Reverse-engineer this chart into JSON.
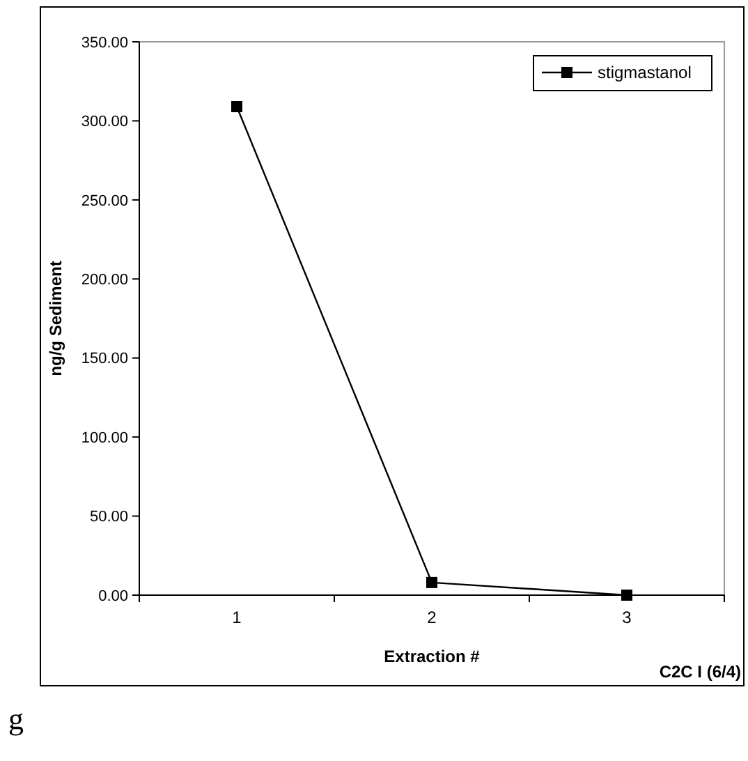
{
  "chart_data": {
    "type": "line",
    "xlabel": "Extraction #",
    "ylabel": "ng/g Sediment",
    "categories": [
      "1",
      "2",
      "3"
    ],
    "series": [
      {
        "name": "stigmastanol",
        "color": "#000000",
        "values": [
          309,
          8,
          0
        ]
      }
    ],
    "ylim": [
      0,
      350
    ],
    "yticks": [
      {
        "value": 0,
        "label": "0.00"
      },
      {
        "value": 50,
        "label": "50.00"
      },
      {
        "value": 100,
        "label": "100.00"
      },
      {
        "value": 150,
        "label": "150.00"
      },
      {
        "value": 200,
        "label": "200.00"
      },
      {
        "value": 250,
        "label": "250.00"
      },
      {
        "value": 300,
        "label": "300.00"
      },
      {
        "value": 350,
        "label": "350.00"
      }
    ],
    "legend": "top right",
    "marker": "square",
    "line_style": "solid",
    "grid": false,
    "annotations": [
      "C2C I (6/4)",
      "g"
    ]
  }
}
